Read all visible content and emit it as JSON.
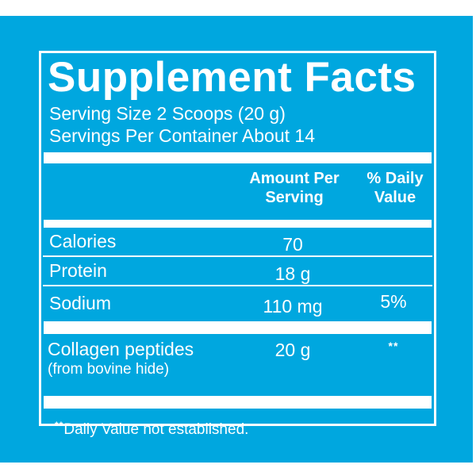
{
  "colors": {
    "panel_background": "#00A7DF",
    "text_and_rules": "#FFFFFF"
  },
  "panel": {
    "title": "Supplement Facts",
    "serving_size": "Serving Size 2 Scoops (20 g)",
    "servings_per_container": "Servings Per Container About 14",
    "header": {
      "amount_col": "Amount Per Serving",
      "dv_col": "% Daily Value"
    },
    "rows": [
      {
        "name": "Calories",
        "amount": "70",
        "dv": ""
      },
      {
        "name": "Protein",
        "amount": "18 g",
        "dv": ""
      },
      {
        "name": "Sodium",
        "amount": "110 mg",
        "dv": "5%"
      }
    ],
    "ingredient_row": {
      "name": "Collagen peptides",
      "source": "(from bovine hide)",
      "amount": "20 g",
      "dv": "**"
    },
    "footnote": {
      "marker": "**",
      "text": "Daily Value not established."
    }
  }
}
